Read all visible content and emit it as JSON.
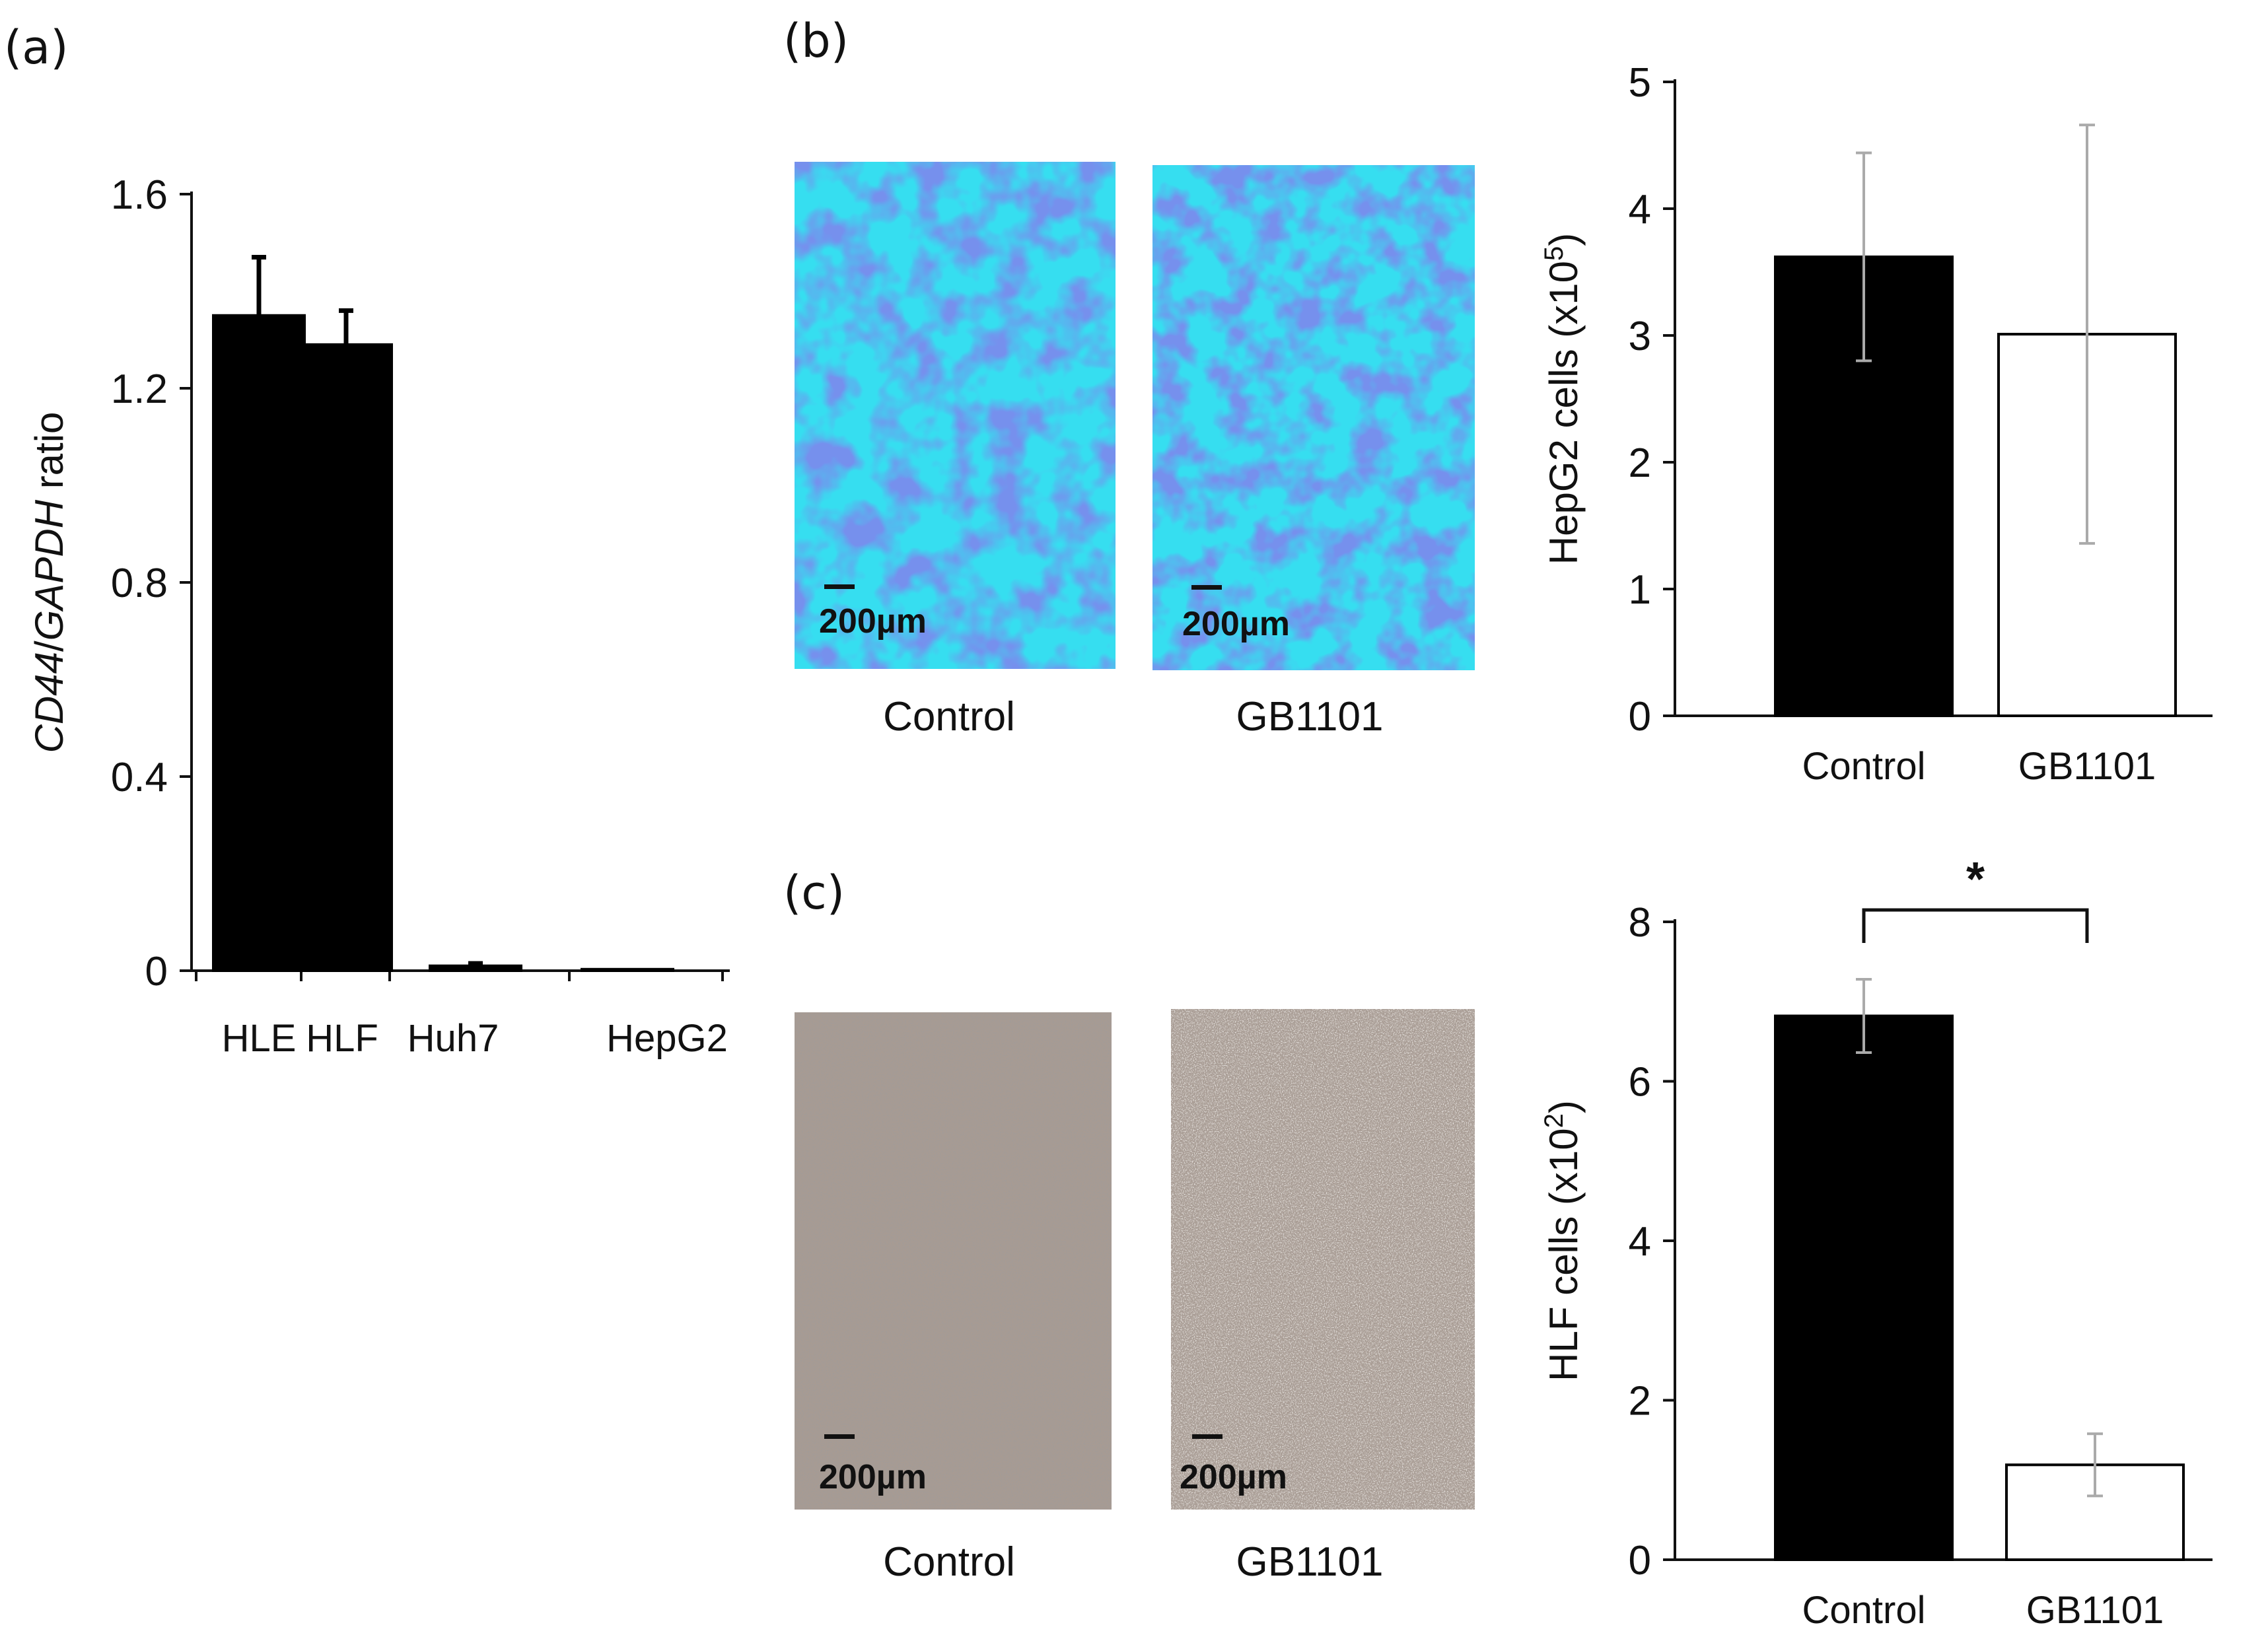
{
  "panels": {
    "a": "(a)",
    "b": "(b)",
    "c": "(c)"
  },
  "images": {
    "scale_bar": "200µm",
    "b_labels": [
      "Control",
      "GB1101"
    ],
    "c_labels": [
      "Control",
      "GB1101"
    ],
    "stain_color": "#33e0f0",
    "cell_color": "#2f4fd6",
    "brightfield_color": "#a89c94"
  },
  "chart_data": [
    {
      "id": "a",
      "type": "bar",
      "ylabel_parts": [
        "CD44",
        "/",
        "GAPDH",
        " ratio"
      ],
      "categories": [
        "HLE",
        "HLF",
        "Huh7",
        "HepG2"
      ],
      "series": [
        {
          "values": [
            1.35,
            1.29,
            0.01,
            0.003
          ],
          "errors": [
            0.12,
            0.07,
            0.005,
            0.0
          ]
        }
      ],
      "ylim": [
        0,
        1.6
      ],
      "yticks": [
        "0",
        "0.4",
        "0.8",
        "1.2",
        "1.6"
      ],
      "bar_fill": "#000000"
    },
    {
      "id": "b",
      "type": "bar",
      "ylabel_parts": [
        "HepG2 cells (x10",
        "5",
        ")"
      ],
      "categories": [
        "Control",
        "GB1101"
      ],
      "series": [
        {
          "values": [
            3.62,
            3.01
          ],
          "errors": [
            0.82,
            1.65
          ]
        }
      ],
      "ylim": [
        0,
        5
      ],
      "yticks": [
        "0",
        "1",
        "2",
        "3",
        "4",
        "5"
      ],
      "bar_fills": [
        "#000000",
        "#ffffff"
      ]
    },
    {
      "id": "c",
      "type": "bar",
      "ylabel_parts": [
        "HLF cells (x10",
        "2",
        ")"
      ],
      "categories": [
        "Control",
        "GB1101"
      ],
      "series": [
        {
          "values": [
            6.82,
            1.19
          ],
          "errors": [
            0.46,
            0.39
          ]
        }
      ],
      "ylim": [
        0,
        8
      ],
      "yticks": [
        "0",
        "2",
        "4",
        "6",
        "8"
      ],
      "bar_fills": [
        "#000000",
        "#ffffff"
      ],
      "significance": "*"
    }
  ]
}
